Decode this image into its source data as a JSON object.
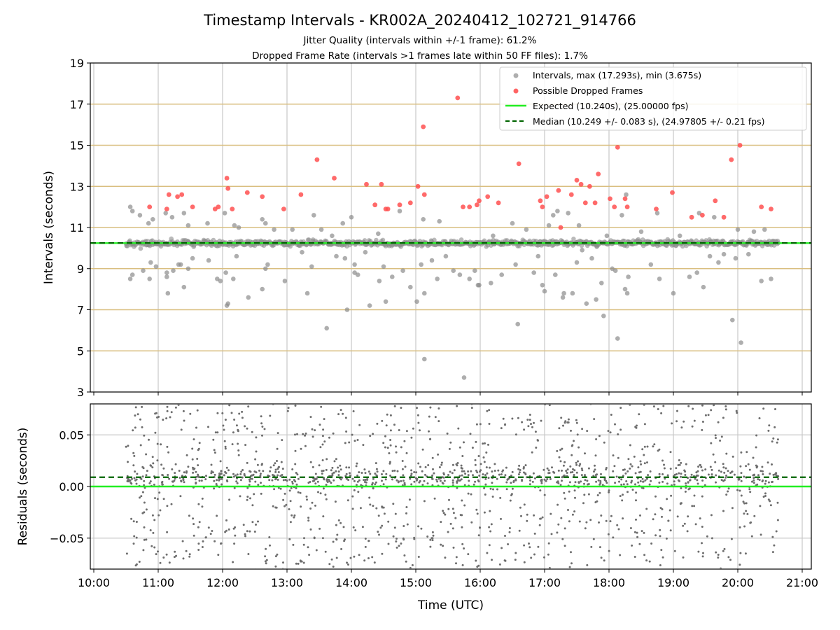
{
  "chart_data": [
    {
      "type": "scatter",
      "title": "Timestamp Intervals - KR002A_20240412_102721_914766",
      "subtitle_lines": [
        "Jitter Quality (intervals within +/-1 frame): 61.2%",
        "Dropped Frame Rate (intervals >1 frames late within 50 FF files): 1.7%"
      ],
      "ylabel": "Intervals (seconds)",
      "xlabel": "",
      "xlim": [
        "10:00",
        "21:00"
      ],
      "ylim": [
        3,
        19
      ],
      "yticks": [
        3,
        5,
        7,
        9,
        11,
        13,
        15,
        17,
        19
      ],
      "ytick_labels": [
        "3",
        "5",
        "7",
        "9",
        "11",
        "13",
        "15",
        "17",
        "19"
      ],
      "xticks": [
        "10:00",
        "11:00",
        "12:00",
        "13:00",
        "14:00",
        "15:00",
        "16:00",
        "17:00",
        "18:00",
        "19:00",
        "20:00",
        "21:00"
      ],
      "grid": "vertical and horizontal",
      "horizontal_guides": [
        5,
        7,
        9,
        11,
        13,
        15,
        17
      ],
      "legend_position": "top-right",
      "legend": [
        "Intervals, max (17.293s), min (3.675s)",
        "Possible Dropped Frames",
        "Expected (10.240s), (25.00000 fps)",
        "Median (10.249 +/- 0.083 s), (24.97805 +/- 0.21 fps)"
      ],
      "expected_value": 10.24,
      "median_value": 10.249,
      "time_range": [
        "10:30",
        "20:38"
      ],
      "series": [
        {
          "name": "Intervals, max (17.293s), min (3.675s)",
          "color": "#8c8c8c",
          "band_center": 10.24,
          "outliers": [
            [
              "10:34",
              12.0
            ],
            [
              "10:36",
              11.8
            ],
            [
              "10:34",
              8.5
            ],
            [
              "10:36",
              8.7
            ],
            [
              "10:43",
              11.6
            ],
            [
              "10:46",
              8.9
            ],
            [
              "10:51",
              11.2
            ],
            [
              "10:53",
              9.3
            ],
            [
              "10:52",
              8.5
            ],
            [
              "10:55",
              11.4
            ],
            [
              "10:58",
              9.1
            ],
            [
              "11:07",
              11.7
            ],
            [
              "11:08",
              8.6
            ],
            [
              "11:08",
              8.8
            ],
            [
              "11:09",
              7.8
            ],
            [
              "11:13",
              11.5
            ],
            [
              "11:14",
              8.9
            ],
            [
              "11:19",
              9.2
            ],
            [
              "11:21",
              9.2
            ],
            [
              "11:24",
              11.7
            ],
            [
              "11:24",
              8.1
            ],
            [
              "11:28",
              11.1
            ],
            [
              "11:28",
              9.0
            ],
            [
              "11:32",
              9.5
            ],
            [
              "11:46",
              11.2
            ],
            [
              "11:47",
              9.4
            ],
            [
              "11:55",
              8.5
            ],
            [
              "11:58",
              8.4
            ],
            [
              "12:02",
              11.7
            ],
            [
              "12:03",
              8.8
            ],
            [
              "12:04",
              7.2
            ],
            [
              "12:05",
              7.3
            ],
            [
              "12:10",
              8.5
            ],
            [
              "12:11",
              11.1
            ],
            [
              "12:13",
              9.6
            ],
            [
              "12:15",
              11.0
            ],
            [
              "12:24",
              7.6
            ],
            [
              "12:37",
              8.0
            ],
            [
              "12:37",
              11.4
            ],
            [
              "12:40",
              11.2
            ],
            [
              "12:40",
              9.0
            ],
            [
              "12:42",
              9.2
            ],
            [
              "12:48",
              10.9
            ],
            [
              "12:58",
              8.4
            ],
            [
              "13:05",
              10.9
            ],
            [
              "13:14",
              9.8
            ],
            [
              "13:19",
              7.8
            ],
            [
              "13:23",
              9.1
            ],
            [
              "13:25",
              11.6
            ],
            [
              "13:32",
              10.9
            ],
            [
              "13:37",
              6.1
            ],
            [
              "13:42",
              10.6
            ],
            [
              "13:46",
              9.6
            ],
            [
              "13:52",
              11.2
            ],
            [
              "13:54",
              9.5
            ],
            [
              "13:56",
              7.0
            ],
            [
              "14:00",
              11.5
            ],
            [
              "14:03",
              9.2
            ],
            [
              "14:03",
              8.8
            ],
            [
              "14:06",
              8.7
            ],
            [
              "14:13",
              9.8
            ],
            [
              "14:17",
              7.2
            ],
            [
              "14:25",
              10.7
            ],
            [
              "14:26",
              8.4
            ],
            [
              "14:30",
              9.1
            ],
            [
              "14:32",
              7.4
            ],
            [
              "14:38",
              8.6
            ],
            [
              "14:45",
              11.8
            ],
            [
              "14:48",
              8.9
            ],
            [
              "14:55",
              8.1
            ],
            [
              "15:01",
              7.4
            ],
            [
              "15:05",
              9.2
            ],
            [
              "15:07",
              11.4
            ],
            [
              "15:08",
              7.8
            ],
            [
              "15:08",
              4.6
            ],
            [
              "15:15",
              9.4
            ],
            [
              "15:20",
              8.5
            ],
            [
              "15:22",
              11.3
            ],
            [
              "15:28",
              9.6
            ],
            [
              "15:35",
              8.9
            ],
            [
              "15:41",
              8.7
            ],
            [
              "15:45",
              3.7
            ],
            [
              "15:50",
              8.5
            ],
            [
              "15:55",
              8.9
            ],
            [
              "15:58",
              8.2
            ],
            [
              "15:59",
              8.2
            ],
            [
              "16:10",
              8.3
            ],
            [
              "16:12",
              10.6
            ],
            [
              "16:20",
              8.7
            ],
            [
              "16:30",
              11.2
            ],
            [
              "16:33",
              9.2
            ],
            [
              "16:35",
              6.3
            ],
            [
              "16:43",
              10.9
            ],
            [
              "16:50",
              8.8
            ],
            [
              "16:54",
              9.6
            ],
            [
              "16:58",
              8.2
            ],
            [
              "17:00",
              7.9
            ],
            [
              "17:04",
              11.1
            ],
            [
              "17:08",
              11.6
            ],
            [
              "17:10",
              8.7
            ],
            [
              "17:12",
              11.8
            ],
            [
              "17:17",
              7.6
            ],
            [
              "17:18",
              7.8
            ],
            [
              "17:22",
              11.7
            ],
            [
              "17:26",
              7.8
            ],
            [
              "17:30",
              9.3
            ],
            [
              "17:32",
              11.1
            ],
            [
              "17:35",
              9.9
            ],
            [
              "17:39",
              7.3
            ],
            [
              "17:44",
              9.5
            ],
            [
              "17:48",
              7.5
            ],
            [
              "17:53",
              8.3
            ],
            [
              "17:55",
              6.7
            ],
            [
              "17:58",
              10.6
            ],
            [
              "18:03",
              9.0
            ],
            [
              "18:06",
              8.9
            ],
            [
              "18:08",
              5.6
            ],
            [
              "18:12",
              11.6
            ],
            [
              "18:15",
              8.0
            ],
            [
              "18:17",
              7.8
            ],
            [
              "18:18",
              8.6
            ],
            [
              "18:16",
              12.6
            ],
            [
              "18:30",
              10.8
            ],
            [
              "18:39",
              9.2
            ],
            [
              "18:45",
              11.7
            ],
            [
              "18:47",
              8.5
            ],
            [
              "19:00",
              7.8
            ],
            [
              "19:06",
              10.6
            ],
            [
              "19:15",
              8.6
            ],
            [
              "19:22",
              8.8
            ],
            [
              "19:24",
              11.7
            ],
            [
              "19:28",
              8.1
            ],
            [
              "19:34",
              9.6
            ],
            [
              "19:38",
              11.5
            ],
            [
              "19:42",
              9.3
            ],
            [
              "19:47",
              9.7
            ],
            [
              "19:55",
              6.5
            ],
            [
              "19:58",
              9.5
            ],
            [
              "20:00",
              10.9
            ],
            [
              "20:03",
              5.4
            ],
            [
              "20:10",
              9.7
            ],
            [
              "20:15",
              10.8
            ],
            [
              "20:22",
              8.4
            ],
            [
              "20:25",
              10.9
            ],
            [
              "20:31",
              8.5
            ]
          ]
        },
        {
          "name": "Possible Dropped Frames",
          "color": "#ff5050",
          "points": [
            [
              "10:52",
              12.0
            ],
            [
              "11:08",
              11.9
            ],
            [
              "11:10",
              12.6
            ],
            [
              "11:18",
              12.5
            ],
            [
              "11:22",
              12.6
            ],
            [
              "11:32",
              12.0
            ],
            [
              "11:53",
              11.9
            ],
            [
              "11:56",
              12.0
            ],
            [
              "12:04",
              13.4
            ],
            [
              "12:05",
              12.9
            ],
            [
              "12:09",
              11.9
            ],
            [
              "12:23",
              12.7
            ],
            [
              "12:37",
              12.5
            ],
            [
              "12:57",
              11.9
            ],
            [
              "13:13",
              12.6
            ],
            [
              "13:28",
              14.3
            ],
            [
              "13:44",
              13.4
            ],
            [
              "14:14",
              13.1
            ],
            [
              "14:22",
              12.1
            ],
            [
              "14:28",
              13.1
            ],
            [
              "14:32",
              11.9
            ],
            [
              "14:34",
              11.9
            ],
            [
              "14:45",
              12.1
            ],
            [
              "14:55",
              12.2
            ],
            [
              "15:02",
              13.0
            ],
            [
              "15:07",
              15.9
            ],
            [
              "15:08",
              12.6
            ],
            [
              "15:39",
              17.3
            ],
            [
              "15:44",
              12.0
            ],
            [
              "15:50",
              12.0
            ],
            [
              "15:57",
              12.1
            ],
            [
              "15:59",
              12.3
            ],
            [
              "16:07",
              12.5
            ],
            [
              "16:17",
              12.2
            ],
            [
              "16:36",
              14.1
            ],
            [
              "16:56",
              12.3
            ],
            [
              "16:58",
              12.0
            ],
            [
              "17:02",
              12.5
            ],
            [
              "17:13",
              12.8
            ],
            [
              "17:15",
              11.0
            ],
            [
              "17:25",
              12.6
            ],
            [
              "17:30",
              13.3
            ],
            [
              "17:34",
              13.1
            ],
            [
              "17:38",
              12.2
            ],
            [
              "17:42",
              13.0
            ],
            [
              "17:47",
              12.2
            ],
            [
              "17:50",
              13.6
            ],
            [
              "18:01",
              12.4
            ],
            [
              "18:05",
              12.0
            ],
            [
              "18:08",
              14.9
            ],
            [
              "18:15",
              12.4
            ],
            [
              "18:17",
              12.0
            ],
            [
              "18:44",
              11.9
            ],
            [
              "18:59",
              12.7
            ],
            [
              "19:17",
              11.5
            ],
            [
              "19:27",
              11.6
            ],
            [
              "19:39",
              12.3
            ],
            [
              "19:47",
              11.5
            ],
            [
              "19:54",
              14.3
            ],
            [
              "20:02",
              15.0
            ],
            [
              "20:22",
              12.0
            ],
            [
              "20:31",
              11.9
            ]
          ]
        },
        {
          "name": "Expected (10.240s), (25.00000 fps)",
          "color": "#22ee22",
          "value": 10.24
        },
        {
          "name": "Median (10.249 +/- 0.083 s), (24.97805 +/- 0.21 fps)",
          "color": "#006400",
          "value": 10.249
        }
      ]
    },
    {
      "type": "scatter",
      "title": "",
      "xlabel": "Time (UTC)",
      "ylabel": "Residuals (seconds)",
      "xlim": [
        "10:00",
        "21:00"
      ],
      "ylim": [
        -0.08,
        0.08
      ],
      "yticks": [
        -0.05,
        0.0,
        0.05
      ],
      "ytick_labels": [
        "−0.05",
        "0.00",
        "0.05"
      ],
      "xticks": [
        "10:00",
        "11:00",
        "12:00",
        "13:00",
        "14:00",
        "15:00",
        "16:00",
        "17:00",
        "18:00",
        "19:00",
        "20:00",
        "21:00"
      ],
      "xtick_labels": [
        "10:00",
        "11:00",
        "12:00",
        "13:00",
        "14:00",
        "15:00",
        "16:00",
        "17:00",
        "18:00",
        "19:00",
        "20:00",
        "21:00"
      ],
      "grid": "vertical and horizontal",
      "expected_residual": 0.0,
      "median_residual": 0.009,
      "time_range": [
        "10:30",
        "20:38"
      ],
      "series": [
        {
          "name": "",
          "color": "#6e6e6e",
          "spread": 0.08,
          "center": 0.009
        }
      ]
    }
  ]
}
